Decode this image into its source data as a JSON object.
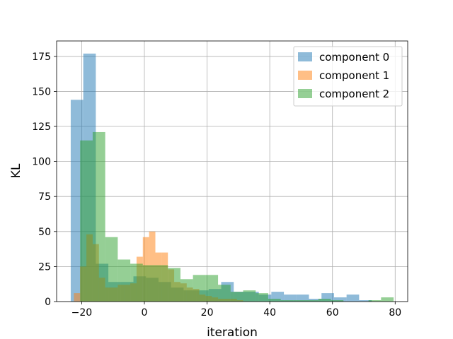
{
  "chart_data": {
    "type": "bar",
    "subtype": "overlapping-histogram",
    "title": "",
    "xlabel": "iteration",
    "ylabel": "KL",
    "xlim": [
      -28,
      84
    ],
    "ylim": [
      0,
      186
    ],
    "xticks": [
      -20,
      0,
      20,
      40,
      60,
      80
    ],
    "yticks": [
      0,
      25,
      50,
      75,
      100,
      125,
      150,
      175
    ],
    "grid": true,
    "legend_position": "top-right",
    "bar_opacity": 0.5,
    "series": [
      {
        "name": "component 0",
        "color": "#1f77b4",
        "bins": [
          {
            "x0": -23.5,
            "x1": -19.5,
            "value": 144
          },
          {
            "x0": -19.5,
            "x1": -15.5,
            "value": 177
          },
          {
            "x0": -15.5,
            "x1": -11.5,
            "value": 27
          },
          {
            "x0": -11.5,
            "x1": -7.5,
            "value": 14
          },
          {
            "x0": -7.5,
            "x1": -3.5,
            "value": 14
          },
          {
            "x0": -3.5,
            "x1": 0.5,
            "value": 18
          },
          {
            "x0": 0.5,
            "x1": 4.5,
            "value": 17
          },
          {
            "x0": 4.5,
            "x1": 8.5,
            "value": 14
          },
          {
            "x0": 8.5,
            "x1": 12.5,
            "value": 10
          },
          {
            "x0": 12.5,
            "x1": 16.5,
            "value": 8
          },
          {
            "x0": 16.5,
            "x1": 20.5,
            "value": 8
          },
          {
            "x0": 20.5,
            "x1": 24.5,
            "value": 9
          },
          {
            "x0": 24.5,
            "x1": 28.5,
            "value": 14
          },
          {
            "x0": 28.5,
            "x1": 32.5,
            "value": 7
          },
          {
            "x0": 32.5,
            "x1": 36.5,
            "value": 7
          },
          {
            "x0": 36.5,
            "x1": 40.5,
            "value": 5
          },
          {
            "x0": 40.5,
            "x1": 44.5,
            "value": 7
          },
          {
            "x0": 44.5,
            "x1": 48.5,
            "value": 5
          },
          {
            "x0": 48.5,
            "x1": 52.5,
            "value": 5
          },
          {
            "x0": 52.5,
            "x1": 56.5,
            "value": 2
          },
          {
            "x0": 56.5,
            "x1": 60.5,
            "value": 6
          },
          {
            "x0": 60.5,
            "x1": 64.5,
            "value": 3
          },
          {
            "x0": 64.5,
            "x1": 68.5,
            "value": 5
          },
          {
            "x0": 68.5,
            "x1": 72.5,
            "value": 1
          }
        ]
      },
      {
        "name": "component 1",
        "color": "#ff7f0e",
        "bins": [
          {
            "x0": -22.5,
            "x1": -20.5,
            "value": 6
          },
          {
            "x0": -20.5,
            "x1": -18.5,
            "value": 25
          },
          {
            "x0": -18.5,
            "x1": -16.5,
            "value": 48
          },
          {
            "x0": -16.5,
            "x1": -14.5,
            "value": 41
          },
          {
            "x0": -14.5,
            "x1": -12.5,
            "value": 17
          },
          {
            "x0": -12.5,
            "x1": -10.5,
            "value": 10
          },
          {
            "x0": -10.5,
            "x1": -8.5,
            "value": 10
          },
          {
            "x0": -8.5,
            "x1": -6.5,
            "value": 12
          },
          {
            "x0": -6.5,
            "x1": -4.5,
            "value": 12
          },
          {
            "x0": -4.5,
            "x1": -2.5,
            "value": 13
          },
          {
            "x0": -2.5,
            "x1": -0.5,
            "value": 32
          },
          {
            "x0": -0.5,
            "x1": 1.5,
            "value": 46
          },
          {
            "x0": 1.5,
            "x1": 3.5,
            "value": 50
          },
          {
            "x0": 3.5,
            "x1": 5.5,
            "value": 35
          },
          {
            "x0": 5.5,
            "x1": 7.5,
            "value": 35
          },
          {
            "x0": 7.5,
            "x1": 9.5,
            "value": 23
          },
          {
            "x0": 9.5,
            "x1": 11.5,
            "value": 14
          },
          {
            "x0": 11.5,
            "x1": 13.5,
            "value": 13
          },
          {
            "x0": 13.5,
            "x1": 15.5,
            "value": 10
          },
          {
            "x0": 15.5,
            "x1": 17.5,
            "value": 9
          },
          {
            "x0": 17.5,
            "x1": 19.5,
            "value": 5
          },
          {
            "x0": 19.5,
            "x1": 21.5,
            "value": 4
          },
          {
            "x0": 21.5,
            "x1": 23.5,
            "value": 3
          },
          {
            "x0": 23.5,
            "x1": 25.5,
            "value": 2
          },
          {
            "x0": 25.5,
            "x1": 27.5,
            "value": 2
          },
          {
            "x0": 27.5,
            "x1": 29.5,
            "value": 2
          },
          {
            "x0": 29.5,
            "x1": 31.5,
            "value": 1
          }
        ]
      },
      {
        "name": "component 2",
        "color": "#2ca02c",
        "bins": [
          {
            "x0": -20.5,
            "x1": -16.5,
            "value": 115
          },
          {
            "x0": -16.5,
            "x1": -12.5,
            "value": 121
          },
          {
            "x0": -12.5,
            "x1": -8.5,
            "value": 46
          },
          {
            "x0": -8.5,
            "x1": -4.5,
            "value": 30
          },
          {
            "x0": -4.5,
            "x1": -0.5,
            "value": 27
          },
          {
            "x0": -0.5,
            "x1": 3.5,
            "value": 26
          },
          {
            "x0": 3.5,
            "x1": 7.5,
            "value": 26
          },
          {
            "x0": 7.5,
            "x1": 11.5,
            "value": 24
          },
          {
            "x0": 11.5,
            "x1": 15.5,
            "value": 16
          },
          {
            "x0": 15.5,
            "x1": 19.5,
            "value": 19
          },
          {
            "x0": 19.5,
            "x1": 23.5,
            "value": 19
          },
          {
            "x0": 23.5,
            "x1": 27.5,
            "value": 12
          },
          {
            "x0": 27.5,
            "x1": 31.5,
            "value": 7
          },
          {
            "x0": 31.5,
            "x1": 35.5,
            "value": 8
          },
          {
            "x0": 35.5,
            "x1": 39.5,
            "value": 6
          },
          {
            "x0": 39.5,
            "x1": 43.5,
            "value": 2
          },
          {
            "x0": 43.5,
            "x1": 47.5,
            "value": 1
          },
          {
            "x0": 47.5,
            "x1": 51.5,
            "value": 1
          },
          {
            "x0": 51.5,
            "x1": 55.5,
            "value": 1
          },
          {
            "x0": 55.5,
            "x1": 59.5,
            "value": 2
          },
          {
            "x0": 59.5,
            "x1": 63.5,
            "value": 1
          },
          {
            "x0": 63.5,
            "x1": 67.5,
            "value": 0
          },
          {
            "x0": 67.5,
            "x1": 71.5,
            "value": 0
          },
          {
            "x0": 71.5,
            "x1": 75.5,
            "value": 1
          },
          {
            "x0": 75.5,
            "x1": 79.5,
            "value": 3
          }
        ]
      }
    ]
  }
}
